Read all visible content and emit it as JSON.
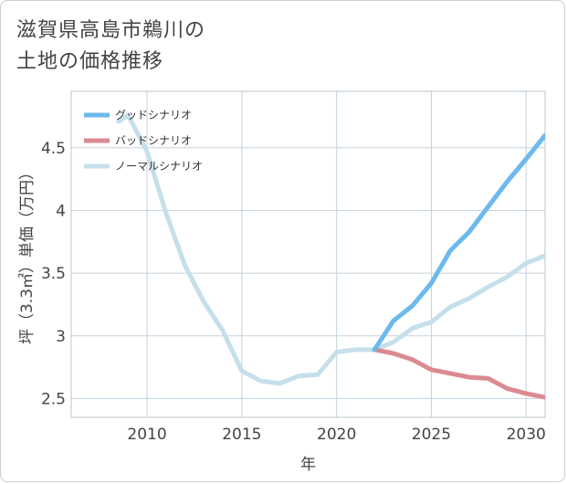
{
  "chart_data": {
    "type": "line",
    "title": "滋賀県高島市鵜川の\n土地の価格推移",
    "xlabel": "年",
    "ylabel": "坪（3.3㎡）単価（万円）",
    "xlim": [
      2006,
      2031
    ],
    "ylim": [
      2.35,
      4.95
    ],
    "xticks": [
      2010,
      2015,
      2020,
      2025,
      2030
    ],
    "yticks": [
      2.5,
      3,
      3.5,
      4,
      4.5
    ],
    "ytick_labels": [
      "2.5",
      "3",
      "3.5",
      "4",
      "4.5"
    ],
    "grid": true,
    "legend_position": "top-left",
    "series": [
      {
        "name": "グッドシナリオ",
        "color": "#6cb9ee",
        "x": [
          2022,
          2023,
          2024,
          2025,
          2026,
          2027,
          2028,
          2029,
          2030,
          2031
        ],
        "y": [
          2.89,
          3.12,
          3.24,
          3.42,
          3.68,
          3.83,
          4.03,
          4.23,
          4.41,
          4.6
        ]
      },
      {
        "name": "バッドシナリオ",
        "color": "#dc8a92",
        "x": [
          2022,
          2023,
          2024,
          2025,
          2026,
          2027,
          2028,
          2029,
          2030,
          2031
        ],
        "y": [
          2.89,
          2.86,
          2.81,
          2.73,
          2.7,
          2.67,
          2.66,
          2.58,
          2.54,
          2.51
        ]
      },
      {
        "name": "ノーマルシナリオ",
        "color": "#c5dfeb",
        "x": [
          2008.5,
          2009,
          2010,
          2011,
          2012,
          2013,
          2014,
          2015,
          2016,
          2017,
          2018,
          2019,
          2020,
          2021,
          2022,
          2023,
          2024,
          2025,
          2026,
          2027,
          2028,
          2029,
          2030,
          2031
        ],
        "y": [
          4.71,
          4.76,
          4.47,
          3.98,
          3.56,
          3.27,
          3.04,
          2.72,
          2.64,
          2.62,
          2.68,
          2.69,
          2.87,
          2.89,
          2.89,
          2.95,
          3.06,
          3.11,
          3.23,
          3.3,
          3.39,
          3.47,
          3.58,
          3.64
        ]
      }
    ]
  }
}
